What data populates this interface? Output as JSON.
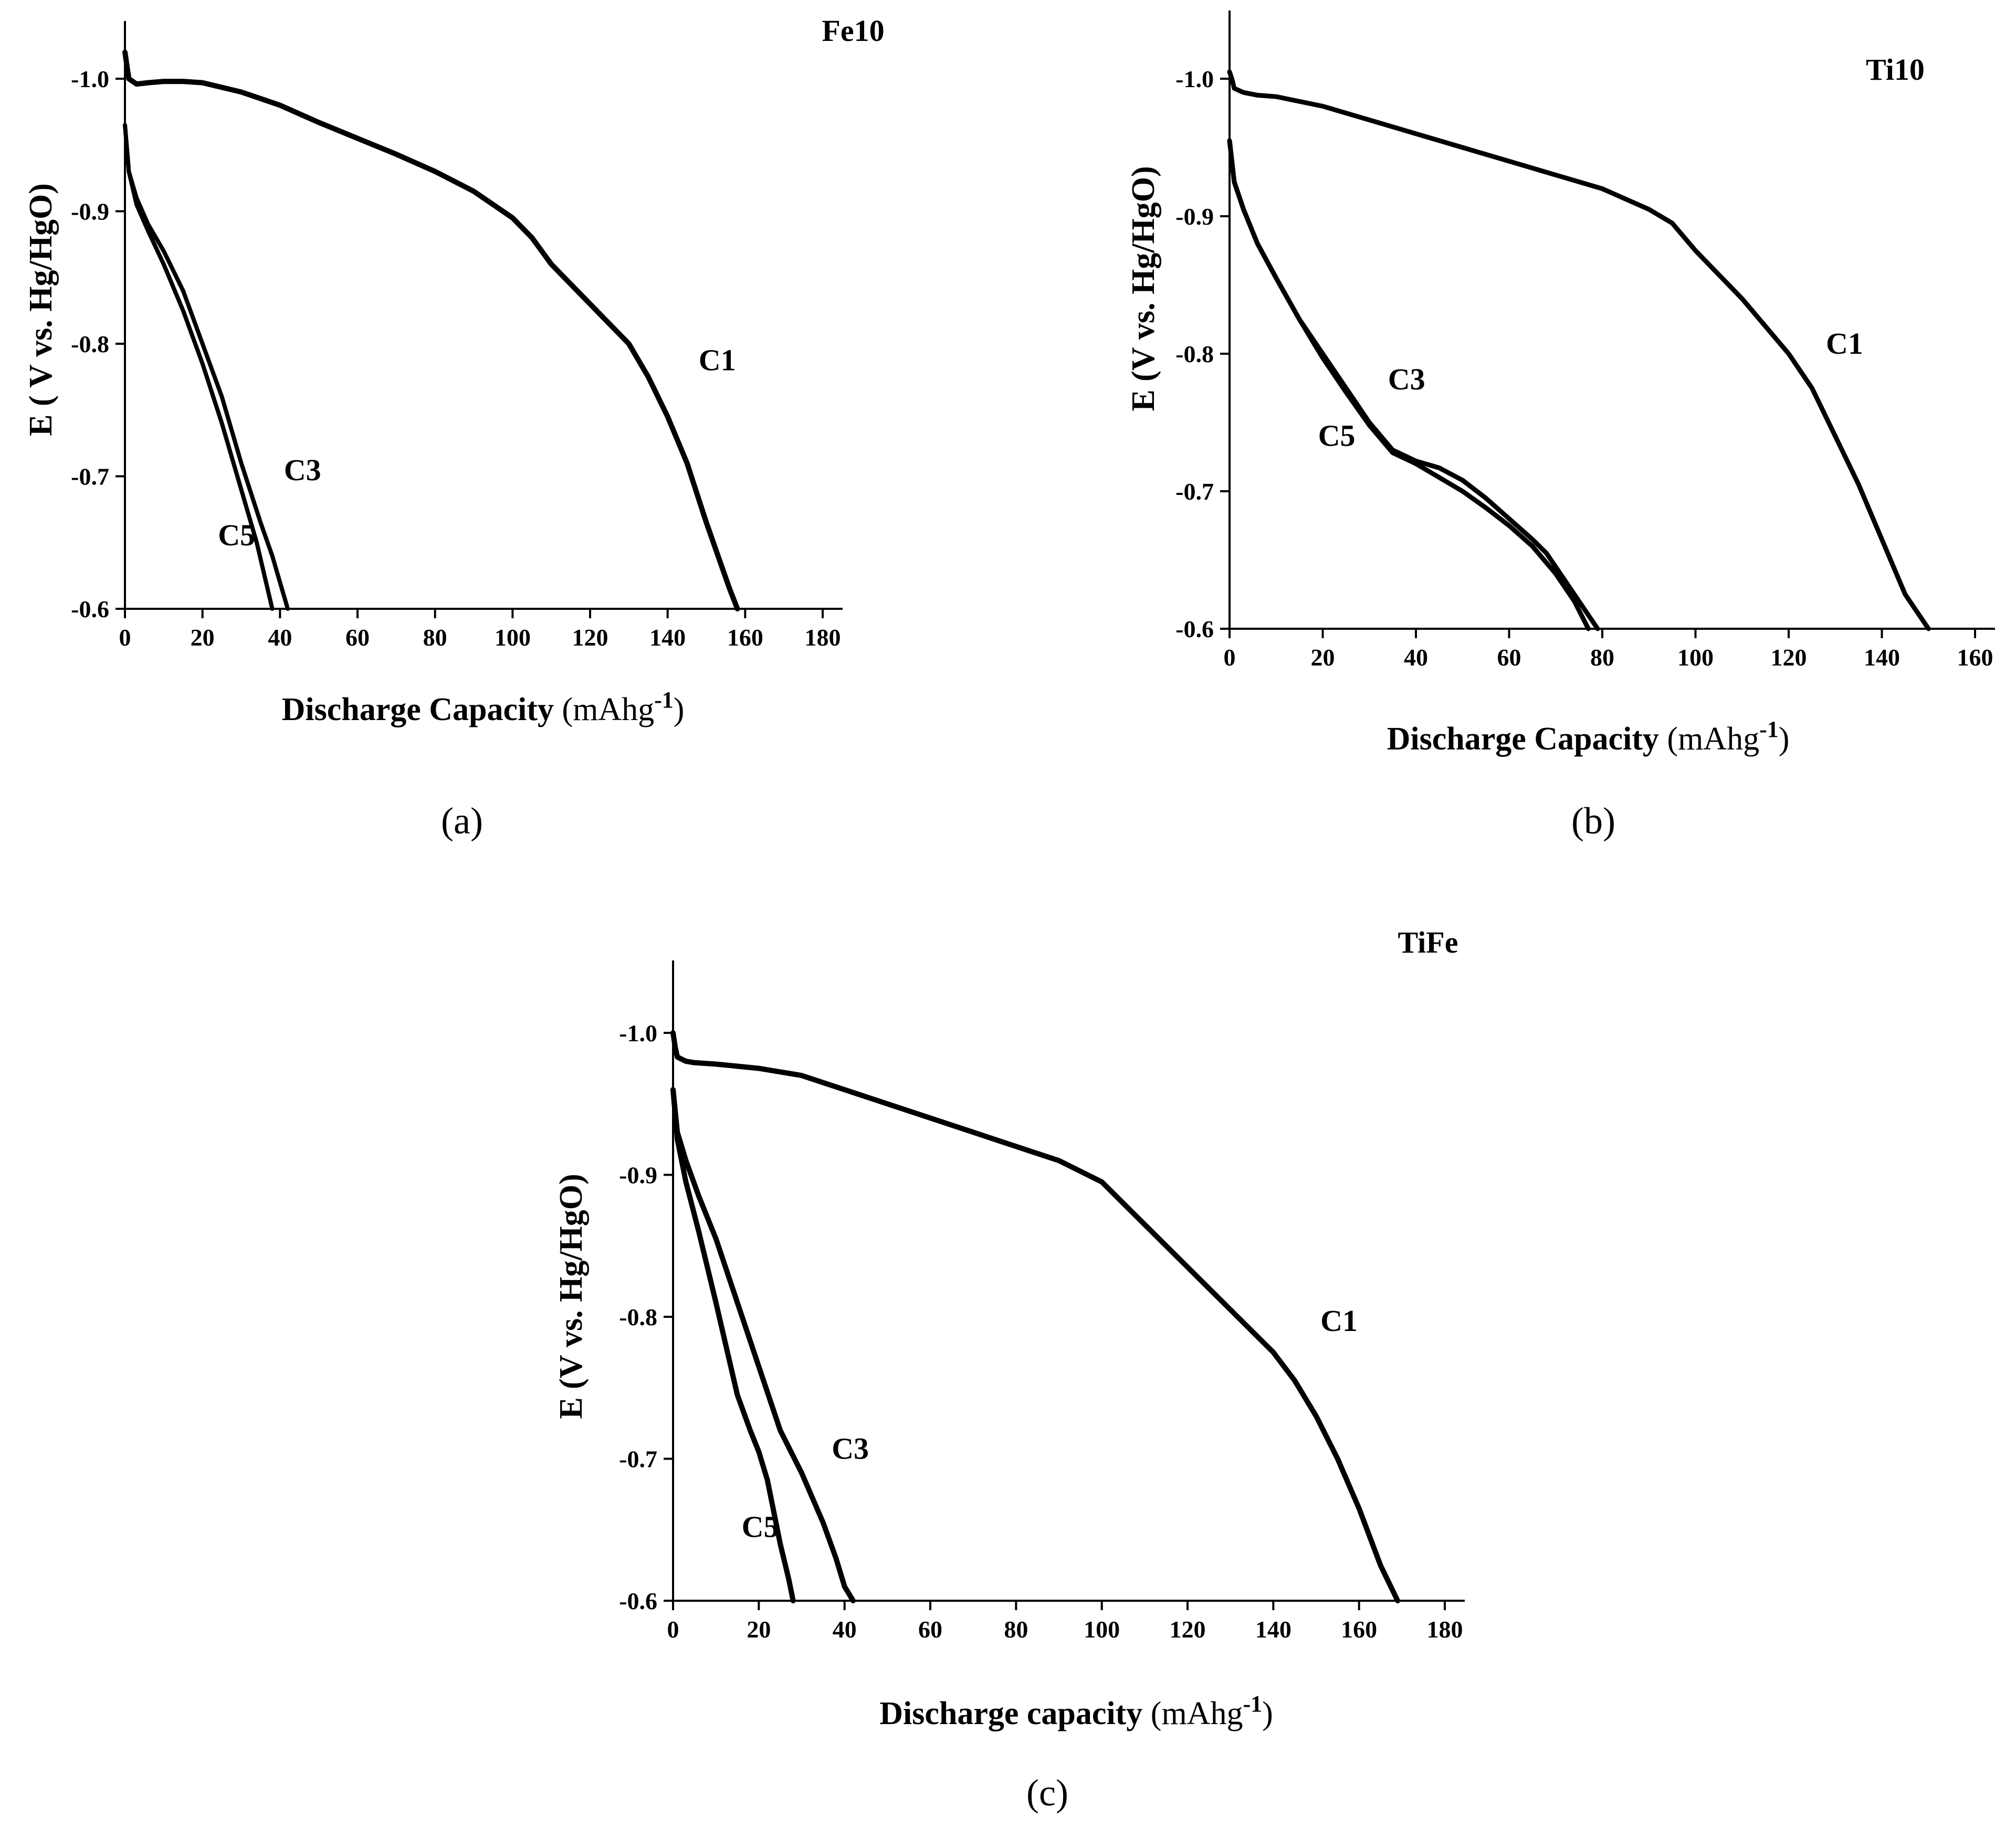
{
  "chart_data": [
    {
      "panel": "(a)",
      "type": "line",
      "title": "Fe10",
      "xlabel_main": "Discharge Capacity",
      "xlabel_unit_open": "(mAhg",
      "xlabel_sup": "-1",
      "xlabel_unit_close": ")",
      "ylabel": "E ( V vs. Hg/HgO)",
      "xlim": [
        0,
        180
      ],
      "ylim": [
        -1.05,
        -0.6
      ],
      "y_reversed": true,
      "xticks": [
        0,
        20,
        40,
        60,
        80,
        100,
        120,
        140,
        160,
        180
      ],
      "yticks": [
        -1.0,
        -0.9,
        -0.8,
        -0.7,
        -0.6
      ],
      "ytick_labels": [
        "-1.0",
        "-0.9",
        "-0.8",
        "-0.7",
        "-0.6"
      ],
      "series": [
        {
          "name": "C1",
          "x": [
            0,
            0.5,
            1,
            3,
            6,
            10,
            15,
            20,
            30,
            40,
            50,
            60,
            70,
            80,
            90,
            100,
            105,
            110,
            120,
            130,
            135,
            140,
            145,
            150,
            153,
            156,
            158
          ],
          "y": [
            -1.02,
            -1.01,
            -1.0,
            -0.996,
            -0.997,
            -0.998,
            -0.998,
            -0.997,
            -0.99,
            -0.98,
            -0.967,
            -0.955,
            -0.943,
            -0.93,
            -0.915,
            -0.895,
            -0.88,
            -0.86,
            -0.83,
            -0.8,
            -0.775,
            -0.745,
            -0.71,
            -0.665,
            -0.64,
            -0.615,
            -0.6
          ]
        },
        {
          "name": "C3",
          "x": [
            0,
            1,
            3,
            6,
            10,
            15,
            20,
            25,
            30,
            35,
            38,
            40,
            42
          ],
          "y": [
            -0.965,
            -0.93,
            -0.91,
            -0.89,
            -0.87,
            -0.84,
            -0.8,
            -0.76,
            -0.71,
            -0.665,
            -0.64,
            -0.62,
            -0.6
          ],
          "stroke": 8
        },
        {
          "name": "C5",
          "x": [
            0,
            1,
            3,
            6,
            10,
            15,
            20,
            25,
            30,
            34,
            36,
            38
          ],
          "y": [
            -0.965,
            -0.93,
            -0.905,
            -0.885,
            -0.86,
            -0.825,
            -0.785,
            -0.74,
            -0.69,
            -0.65,
            -0.625,
            -0.6
          ],
          "stroke": 8
        }
      ],
      "curve_labels": [
        {
          "text": "C1",
          "x": 148,
          "y": -0.78
        },
        {
          "text": "C3",
          "x": 41,
          "y": -0.697
        },
        {
          "text": "C5",
          "x": 24,
          "y": -0.648
        }
      ]
    },
    {
      "panel": "(b)",
      "type": "line",
      "title": "Ti10",
      "xlabel_main": "Discharge Capacity",
      "xlabel_unit_open": "(mAhg",
      "xlabel_sup": "-1",
      "xlabel_unit_close": ")",
      "ylabel": "E (V vs. Hg/HgO)",
      "xlim": [
        0,
        170
      ],
      "ylim": [
        -1.05,
        -0.6
      ],
      "y_reversed": true,
      "xticks": [
        0,
        20,
        40,
        60,
        80,
        100,
        120,
        140,
        160
      ],
      "yticks": [
        -1.0,
        -0.9,
        -0.8,
        -0.7,
        -0.6
      ],
      "ytick_labels": [
        "-1.0",
        "-0.9",
        "-0.8",
        "-0.7",
        "-0.6"
      ],
      "series": [
        {
          "name": "C1",
          "x": [
            0,
            0.5,
            1,
            3,
            6,
            10,
            20,
            30,
            40,
            50,
            60,
            70,
            80,
            90,
            95,
            100,
            110,
            120,
            125,
            130,
            135,
            140,
            145,
            150
          ],
          "y": [
            -1.005,
            -1.0,
            -0.993,
            -0.99,
            -0.988,
            -0.987,
            -0.98,
            -0.97,
            -0.96,
            -0.95,
            -0.94,
            -0.93,
            -0.92,
            -0.905,
            -0.895,
            -0.875,
            -0.84,
            -0.8,
            -0.775,
            -0.74,
            -0.705,
            -0.665,
            -0.625,
            -0.6
          ]
        },
        {
          "name": "C3",
          "x": [
            0,
            1,
            3,
            6,
            10,
            15,
            20,
            25,
            30,
            35,
            40,
            45,
            50,
            55,
            60,
            65,
            68,
            70,
            75,
            79
          ],
          "y": [
            -0.955,
            -0.925,
            -0.905,
            -0.88,
            -0.855,
            -0.825,
            -0.8,
            -0.775,
            -0.75,
            -0.73,
            -0.722,
            -0.717,
            -0.708,
            -0.695,
            -0.68,
            -0.665,
            -0.655,
            -0.645,
            -0.62,
            -0.6
          ]
        },
        {
          "name": "C5",
          "x": [
            0,
            1,
            3,
            6,
            10,
            15,
            20,
            25,
            30,
            35,
            40,
            45,
            50,
            55,
            60,
            65,
            70,
            74,
            77
          ],
          "y": [
            -0.955,
            -0.925,
            -0.905,
            -0.88,
            -0.855,
            -0.825,
            -0.797,
            -0.772,
            -0.748,
            -0.728,
            -0.72,
            -0.71,
            -0.7,
            -0.688,
            -0.675,
            -0.66,
            -0.64,
            -0.62,
            -0.6
          ]
        }
      ],
      "curve_labels": [
        {
          "text": "C1",
          "x": 128,
          "y": -0.8
        },
        {
          "text": "C3",
          "x": 34,
          "y": -0.774
        },
        {
          "text": "C5",
          "x": 19,
          "y": -0.733
        }
      ]
    },
    {
      "panel": "(c)",
      "type": "line",
      "title": "TiFe",
      "xlabel_main": "Discharge capacity",
      "xlabel_unit_open": "(mAhg",
      "xlabel_sup": "-1",
      "xlabel_unit_close": ")",
      "ylabel": "E (V vs. Hg/HgO)",
      "xlim": [
        0,
        190
      ],
      "ylim": [
        -1.05,
        -0.6
      ],
      "y_reversed": true,
      "xticks": [
        0,
        20,
        40,
        60,
        80,
        100,
        120,
        140,
        160,
        180
      ],
      "yticks": [
        -1.0,
        -0.9,
        -0.8,
        -0.7,
        -0.6
      ],
      "ytick_labels": [
        "-1.0",
        "-0.9",
        "-0.8",
        "-0.7",
        "-0.6"
      ],
      "series": [
        {
          "name": "C1",
          "x": [
            0,
            0.5,
            1,
            3,
            5,
            10,
            20,
            30,
            40,
            50,
            60,
            70,
            80,
            90,
            100,
            105,
            110,
            120,
            130,
            140,
            145,
            150,
            155,
            160,
            165,
            169
          ],
          "y": [
            -1.0,
            -0.99,
            -0.983,
            -0.98,
            -0.979,
            -0.978,
            -0.975,
            -0.97,
            -0.96,
            -0.95,
            -0.94,
            -0.93,
            -0.92,
            -0.91,
            -0.895,
            -0.88,
            -0.865,
            -0.835,
            -0.805,
            -0.775,
            -0.755,
            -0.73,
            -0.7,
            -0.665,
            -0.625,
            -0.6
          ]
        },
        {
          "name": "C3",
          "x": [
            0,
            1,
            3,
            6,
            10,
            15,
            20,
            25,
            30,
            35,
            38,
            40,
            42
          ],
          "y": [
            -0.96,
            -0.93,
            -0.91,
            -0.885,
            -0.855,
            -0.81,
            -0.765,
            -0.72,
            -0.69,
            -0.655,
            -0.63,
            -0.61,
            -0.6
          ]
        },
        {
          "name": "C5",
          "x": [
            0,
            1,
            3,
            6,
            10,
            15,
            18,
            20,
            22,
            25,
            27,
            28
          ],
          "y": [
            -0.96,
            -0.925,
            -0.895,
            -0.86,
            -0.81,
            -0.745,
            -0.72,
            -0.705,
            -0.685,
            -0.64,
            -0.615,
            -0.6
          ]
        }
      ],
      "curve_labels": [
        {
          "text": "C1",
          "x": 151,
          "y": -0.79
        },
        {
          "text": "C3",
          "x": 37,
          "y": -0.7
        },
        {
          "text": "C5",
          "x": 16,
          "y": -0.645
        }
      ]
    }
  ]
}
